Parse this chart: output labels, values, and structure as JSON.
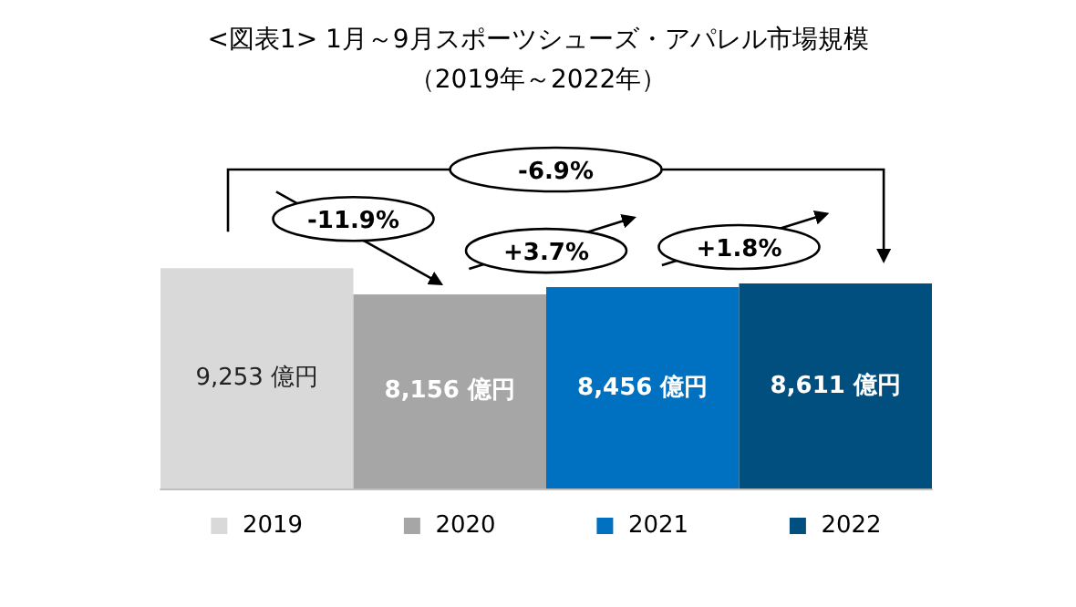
{
  "chart_data": {
    "type": "bar",
    "title": "<図表1> 1月～9月スポーツシューズ・アパレル市場規模",
    "subtitle": "（2019年～2022年）",
    "categories": [
      "2019",
      "2020",
      "2021",
      "2022"
    ],
    "values": [
      9253,
      8156,
      8456,
      8611
    ],
    "colors": [
      "#d9d9d9",
      "#a6a6a6",
      "#0070c0",
      "#004f7f"
    ],
    "value_labels": [
      "9,253 億円",
      "8,156 億円",
      "8,456 億円",
      "8,611 億円"
    ],
    "annotations": [
      "-6.9%",
      "-11.9%",
      "+3.7%",
      "+1.8%"
    ]
  }
}
